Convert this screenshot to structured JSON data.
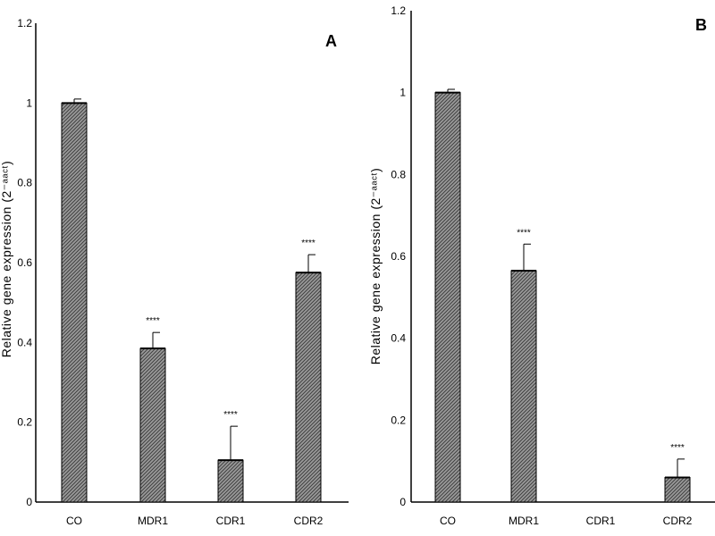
{
  "chart_data": [
    {
      "type": "bar",
      "panel": "A",
      "ylabel": "Relative gene expression (2⁻ᵃᵃᶜᵗ)",
      "categories": [
        "CO",
        "MDR1",
        "CDR1",
        "CDR2"
      ],
      "values": [
        1.0,
        0.385,
        0.105,
        0.575
      ],
      "errors": [
        0.01,
        0.04,
        0.085,
        0.045
      ],
      "significance": [
        "",
        "****",
        "****",
        "****"
      ],
      "ylim": [
        0,
        1.2
      ],
      "yticks": [
        "0",
        "0.2",
        "0.4",
        "0.6",
        "0.8",
        "1",
        "1.2"
      ],
      "grid": false,
      "legend": "none"
    },
    {
      "type": "bar",
      "panel": "B",
      "ylabel": "Relative gene expression (2⁻ᵃᵃᶜᵗ)",
      "categories": [
        "CO",
        "MDR1",
        "CDR1",
        "CDR2"
      ],
      "values": [
        1.0,
        0.565,
        0.0,
        0.06
      ],
      "errors": [
        0.008,
        0.065,
        0.0,
        0.045
      ],
      "significance": [
        "",
        "****",
        "",
        "****"
      ],
      "ylim": [
        0,
        1.2
      ],
      "yticks": [
        "0",
        "0.2",
        "0.4",
        "0.6",
        "0.8",
        "1",
        "1.2"
      ],
      "grid": false,
      "legend": "none"
    }
  ],
  "colors": {
    "bar_fill": "#8a8a8a",
    "bar_stroke": "#000000",
    "axis": "#000000"
  }
}
